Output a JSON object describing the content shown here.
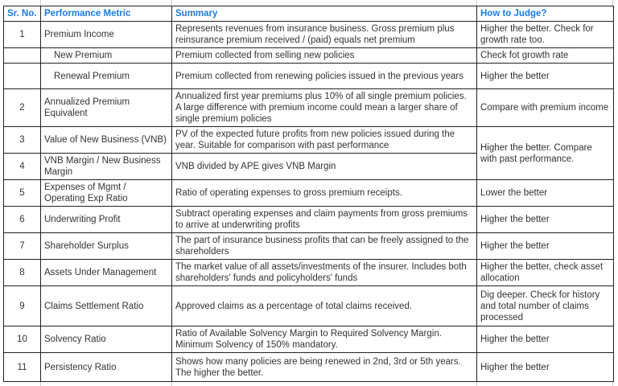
{
  "colors": {
    "header_text": "#1b7ce2",
    "border": "#222222",
    "body_text": "#333333",
    "gridline": "#c9c9c9"
  },
  "table": {
    "headers": [
      "Sr. No.",
      "Performance Metric",
      "Summary",
      "How to Judge?"
    ],
    "rows": [
      {
        "sr": "1",
        "metric": "Premium Income",
        "summary": "Represents revenues from insurance business. Gross premium plus reinsurance premium received / (paid) equals net premium",
        "judge": "Higher the better. Check for growth rate too."
      },
      {
        "sr": "",
        "metric": "New Premium",
        "summary": "Premium collected from selling new policies",
        "judge": "Check fot growth rate"
      },
      {
        "sr": "",
        "metric": "Renewal Premium",
        "summary": "Premium collected from renewing policies issued in the previous years",
        "judge": "Higher the better"
      },
      {
        "sr": "2",
        "metric": "Annualized Premium Equivalent",
        "summary": "Annualized first year premiums plus 10% of all single premium policies. A large difference with premium income could mean a larger share of single premium policies",
        "judge": "Compare with premium income"
      },
      {
        "sr": "3",
        "metric": "Value of New Business (VNB)",
        "summary": "PV of the expected future profits from new policies issued during the year. Suitable for comparison with past performance",
        "judge": "Higher the better. Compare with past performance."
      },
      {
        "sr": "4",
        "metric": "VNB Margin / New Business Margin",
        "summary": "VNB divided by APE gives VNB Margin",
        "judge": ""
      },
      {
        "sr": "5",
        "metric": "Expenses of Mgmt / Operating Exp Ratio",
        "summary": "Ratio of operating expenses to gross premium receipts.",
        "judge": "Lower the better"
      },
      {
        "sr": "6",
        "metric": "Underwriting Profit",
        "summary": "Subtract operating expenses and claim payments from gross premiums to arrive at underwriting profits",
        "judge": "Higher the better"
      },
      {
        "sr": "7",
        "metric": "Shareholder Surplus",
        "summary": "The part of insurance business profits that can be freely assigned to the shareholders",
        "judge": "Higher the better"
      },
      {
        "sr": "8",
        "metric": "Assets Under Management",
        "summary": "The market value of all assets/investments of the insurer. Includes both shareholders' funds and policyholders' funds",
        "judge": "Higher the better, check asset allocation"
      },
      {
        "sr": "9",
        "metric": "Claims Settlement Ratio",
        "summary": "Approved claims as a percentage of total claims received.",
        "judge": "Dig deeper. Check for history and total number of claims processed"
      },
      {
        "sr": "10",
        "metric": "Solvency Ratio",
        "summary": "Ratio of Available Solvency Margin to Required Solvency Margin. Minimum Solvency of 150% mandatory.",
        "judge": "Higher the better"
      },
      {
        "sr": "11",
        "metric": "Persistency Ratio",
        "summary": "Shows how many policies are being renewed in 2nd, 3rd or 5th years. The higher the better.",
        "judge": "Higher the better"
      }
    ]
  }
}
